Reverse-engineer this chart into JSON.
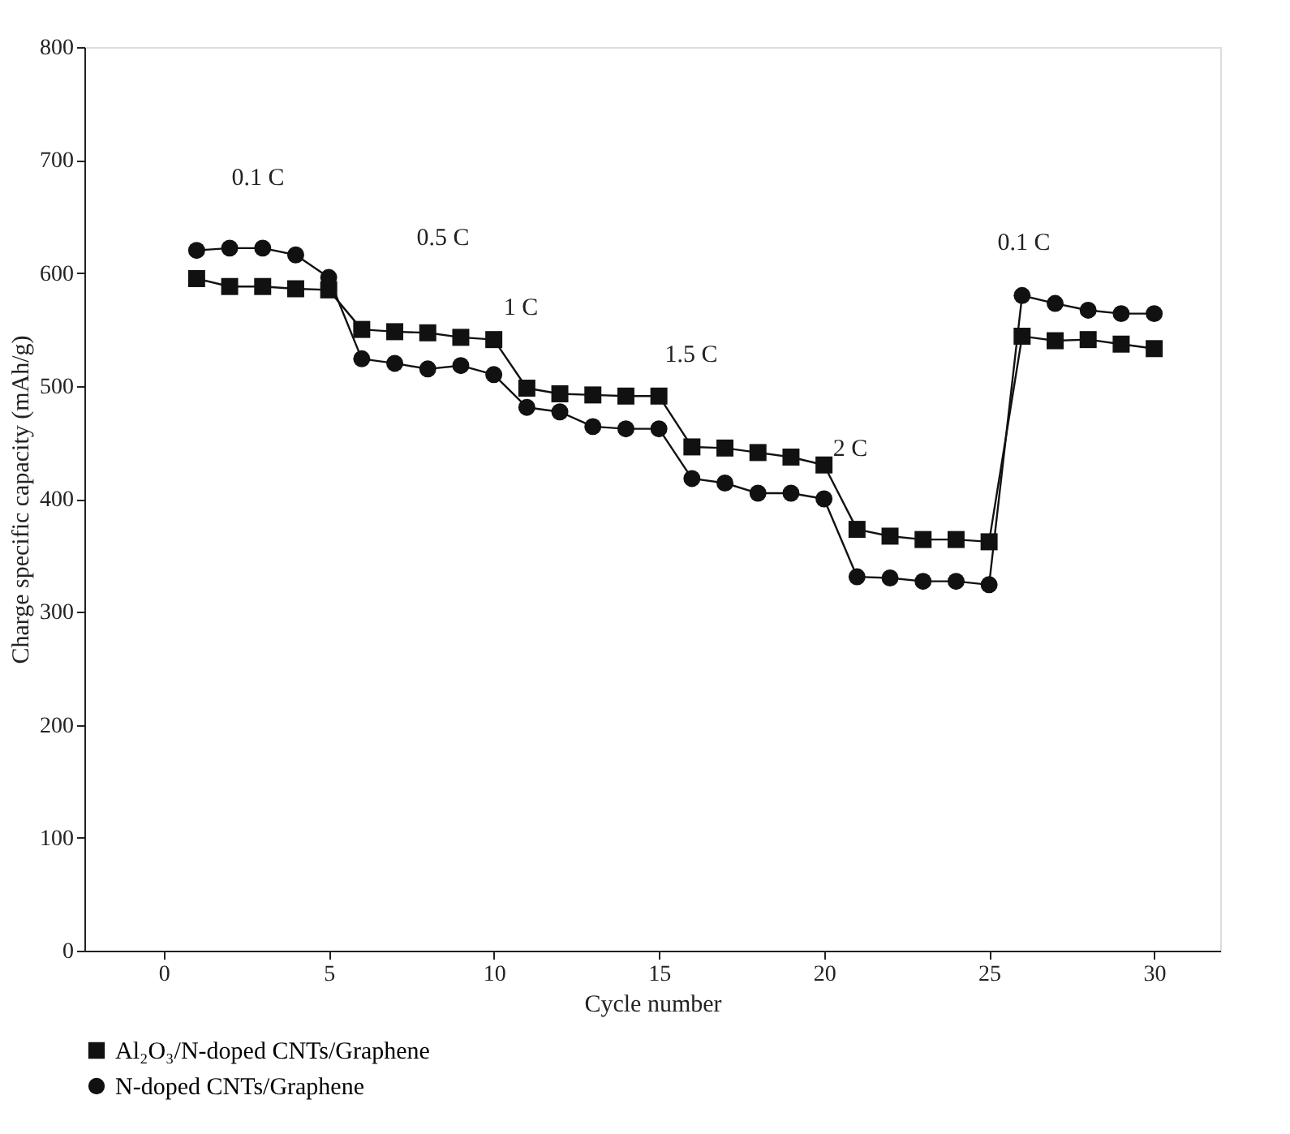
{
  "chart_data": {
    "type": "line",
    "xlabel": "Cycle number",
    "ylabel": "Charge specific capacity (mAh/g)",
    "x": [
      1,
      2,
      3,
      4,
      5,
      6,
      7,
      8,
      9,
      10,
      11,
      12,
      13,
      14,
      15,
      16,
      17,
      18,
      19,
      20,
      21,
      22,
      23,
      24,
      25,
      26,
      27,
      28,
      29,
      30
    ],
    "series": [
      {
        "name": "Al₂O₃/N-doped CNTs/Graphene",
        "color": "#111111",
        "marker": "square",
        "values": [
          595,
          588,
          588,
          586,
          585,
          550,
          548,
          547,
          543,
          541,
          498,
          493,
          492,
          491,
          491,
          446,
          445,
          441,
          437,
          430,
          373,
          367,
          364,
          364,
          362,
          544,
          540,
          541,
          537,
          533
        ]
      },
      {
        "name": "N-doped CNTs/Graphene",
        "color": "#111111",
        "marker": "circle",
        "values": [
          620,
          622,
          622,
          616,
          596,
          524,
          520,
          515,
          518,
          510,
          481,
          477,
          464,
          462,
          462,
          418,
          414,
          405,
          405,
          400,
          331,
          330,
          327,
          327,
          324,
          580,
          573,
          567,
          564,
          564
        ]
      }
    ],
    "annotations": [
      "0.1 C",
      "0.5 C",
      "1 C",
      "1.5 C",
      "2 C",
      "0.1 C"
    ],
    "xlim": [
      -2.4,
      32
    ],
    "xticks": [
      0,
      5,
      10,
      15,
      20,
      25,
      30
    ],
    "ylim": [
      0,
      800
    ],
    "yticks": [
      0,
      100,
      200,
      300,
      400,
      500,
      600,
      700,
      800
    ],
    "grid": false,
    "legend": "bottom left",
    "line_style": "solid"
  }
}
